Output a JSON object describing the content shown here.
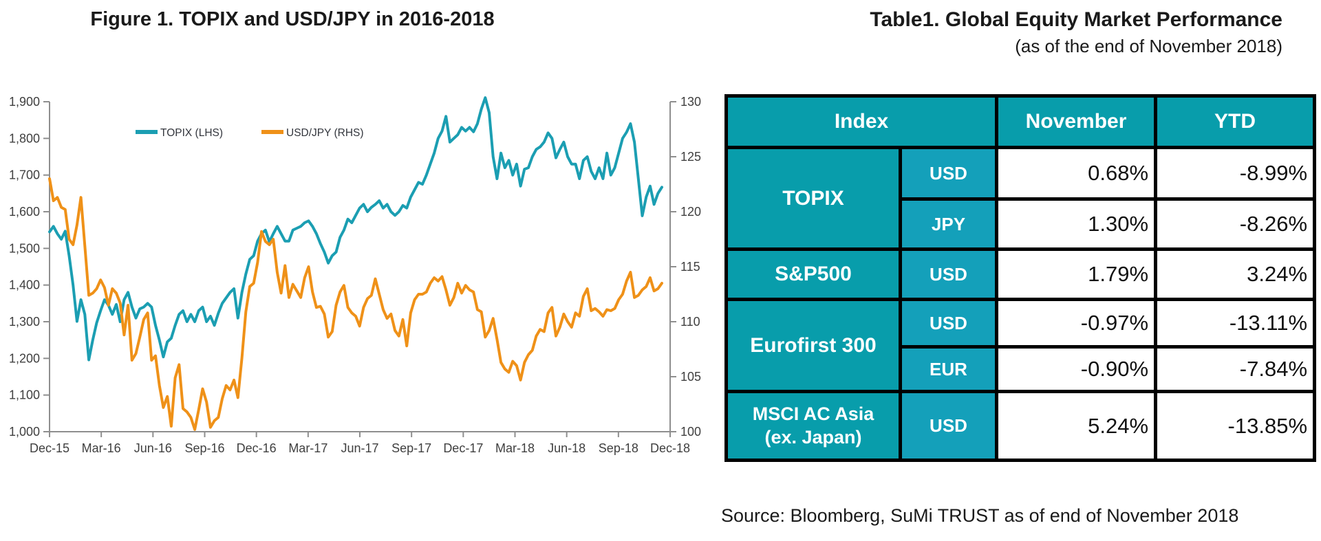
{
  "figure": {
    "title": "Figure 1. TOPIX and USD/JPY in 2016-2018"
  },
  "chart_data": {
    "type": "line",
    "title": "Figure 1. TOPIX and USD/JPY in 2016-2018",
    "sampling": "weekly samples, Dec-2015 through Nov-2018",
    "grid": false,
    "legend_position": "top-inside",
    "x_tick_labels": [
      "Dec-15",
      "Mar-16",
      "Jun-16",
      "Sep-16",
      "Dec-16",
      "Mar-17",
      "Jun-17",
      "Sep-17",
      "Dec-17",
      "Mar-18",
      "Jun-18",
      "Sep-18",
      "Dec-18"
    ],
    "left_axis": {
      "min": 1000,
      "max": 1900,
      "tick_step": 100,
      "label_format": "thousands-comma"
    },
    "right_axis": {
      "min": 100,
      "max": 130,
      "tick_step": 5
    },
    "axis_color": "#8e8e8e",
    "tick_label_color": "#3f3f3f",
    "series": [
      {
        "name": "TOPIX (LHS)",
        "axis": "left",
        "color": "#1b9eb2",
        "values": [
          1545,
          1560,
          1540,
          1525,
          1547,
          1480,
          1400,
          1301,
          1360,
          1320,
          1196,
          1250,
          1297,
          1330,
          1360,
          1345,
          1320,
          1347,
          1300,
          1360,
          1380,
          1340,
          1310,
          1335,
          1340,
          1350,
          1340,
          1290,
          1250,
          1204,
          1245,
          1255,
          1290,
          1320,
          1330,
          1300,
          1320,
          1300,
          1330,
          1340,
          1300,
          1315,
          1290,
          1323,
          1350,
          1365,
          1380,
          1390,
          1310,
          1380,
          1430,
          1470,
          1480,
          1520,
          1540,
          1550,
          1518,
          1540,
          1560,
          1540,
          1520,
          1520,
          1550,
          1555,
          1560,
          1570,
          1575,
          1560,
          1540,
          1513,
          1490,
          1460,
          1480,
          1490,
          1530,
          1550,
          1580,
          1570,
          1590,
          1610,
          1620,
          1600,
          1612,
          1620,
          1630,
          1610,
          1620,
          1600,
          1590,
          1600,
          1617,
          1610,
          1640,
          1660,
          1680,
          1675,
          1700,
          1730,
          1760,
          1800,
          1820,
          1860,
          1790,
          1800,
          1810,
          1830,
          1820,
          1830,
          1818,
          1840,
          1880,
          1911,
          1870,
          1750,
          1690,
          1760,
          1720,
          1740,
          1700,
          1730,
          1670,
          1716,
          1720,
          1750,
          1770,
          1777,
          1790,
          1815,
          1800,
          1747,
          1770,
          1790,
          1750,
          1730,
          1730,
          1690,
          1740,
          1750,
          1710,
          1690,
          1720,
          1690,
          1760,
          1700,
          1720,
          1760,
          1800,
          1817,
          1840,
          1790,
          1690,
          1589,
          1640,
          1670,
          1620,
          1650,
          1667
        ]
      },
      {
        "name": "USD/JPY (RHS)",
        "axis": "right",
        "color": "#ef9118",
        "values": [
          123.0,
          121.0,
          121.3,
          120.4,
          120.2,
          117.5,
          117.0,
          118.8,
          121.3,
          116.9,
          112.4,
          112.6,
          113.0,
          113.8,
          113.1,
          111.5,
          113.0,
          112.6,
          111.7,
          108.8,
          111.5,
          106.5,
          107.1,
          108.6,
          110.2,
          110.8,
          106.5,
          106.9,
          104.2,
          102.2,
          103.2,
          100.5,
          104.9,
          106.1,
          102.1,
          101.8,
          101.3,
          100.2,
          102.0,
          103.9,
          102.7,
          100.4,
          101.0,
          101.3,
          103.0,
          104.2,
          103.8,
          104.7,
          103.1,
          106.7,
          110.9,
          113.2,
          113.5,
          115.4,
          118.2,
          117.3,
          117.0,
          117.5,
          114.5,
          112.6,
          115.1,
          112.2,
          113.4,
          112.8,
          112.2,
          114.0,
          115.0,
          112.7,
          111.3,
          111.4,
          110.7,
          108.6,
          109.1,
          111.5,
          112.7,
          113.3,
          111.3,
          110.8,
          110.5,
          109.6,
          111.3,
          112.1,
          112.4,
          113.9,
          112.5,
          111.1,
          110.3,
          110.7,
          109.2,
          108.7,
          110.2,
          107.8,
          110.8,
          112.0,
          112.5,
          112.5,
          112.7,
          113.5,
          114.0,
          113.7,
          114.1,
          112.9,
          111.5,
          112.2,
          113.5,
          112.6,
          113.3,
          112.9,
          112.7,
          111.1,
          110.9,
          108.6,
          109.2,
          110.3,
          108.4,
          106.3,
          105.7,
          105.4,
          106.4,
          106.0,
          104.7,
          106.3,
          107.0,
          107.4,
          108.7,
          109.3,
          109.1,
          110.8,
          111.3,
          108.7,
          109.5,
          110.7,
          110.0,
          109.5,
          110.8,
          110.5,
          112.3,
          113.0,
          111.0,
          111.2,
          110.9,
          110.5,
          111.1,
          111.0,
          111.2,
          112.0,
          112.5,
          113.7,
          114.5,
          112.2,
          112.4,
          112.9,
          113.2,
          114.0,
          112.8,
          113.0,
          113.5
        ]
      }
    ]
  },
  "table": {
    "title": "Table1. Global Equity Market Performance",
    "subtitle": "(as of the end of November 2018)",
    "headers": {
      "index": "Index",
      "november": "November",
      "ytd": "YTD"
    },
    "rows": [
      {
        "index": "TOPIX",
        "currency": "USD",
        "november": "0.68%",
        "ytd": "-8.99%"
      },
      {
        "index": "TOPIX",
        "currency": "JPY",
        "november": "1.30%",
        "ytd": "-8.26%"
      },
      {
        "index": "S&P500",
        "currency": "USD",
        "november": "1.79%",
        "ytd": "3.24%"
      },
      {
        "index": "Eurofirst 300",
        "currency": "USD",
        "november": "-0.97%",
        "ytd": "-13.11%"
      },
      {
        "index": "Eurofirst 300",
        "currency": "EUR",
        "november": "-0.90%",
        "ytd": "-7.84%"
      },
      {
        "index": "MSCI AC Asia (ex. Japan)",
        "currency": "USD",
        "november": "5.24%",
        "ytd": "-13.85%",
        "index_lines": [
          "MSCI AC Asia",
          "(ex. Japan)"
        ]
      }
    ],
    "source": "Source: Bloomberg, SuMi TRUST as of end of November 2018",
    "colors": {
      "header_teal": "#089dab",
      "currency_teal": "#14a0ba",
      "border": "#000000"
    }
  }
}
